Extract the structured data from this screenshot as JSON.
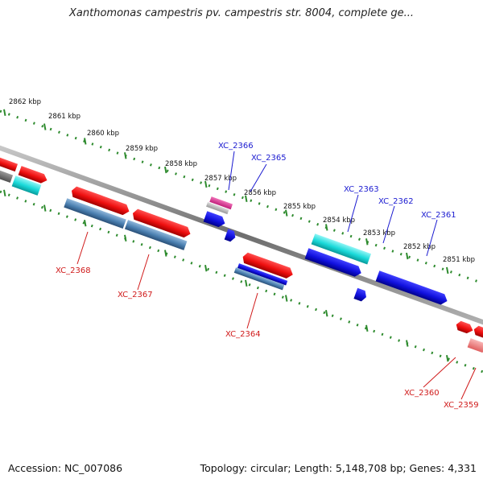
{
  "title": "Xanthomonas campestris pv. campestris str. 8004, complete ge...",
  "footer": {
    "accession": "Accession: NC_007086",
    "summary": "Topology: circular; Length: 5,148,708 bp; Genes: 4,331"
  },
  "scale_labels": [
    "2862 kbp",
    "2861 kbp",
    "2860 kbp",
    "2859 kbp",
    "2858 kbp",
    "2857 kbp",
    "2856 kbp",
    "2855 kbp",
    "2854 kbp",
    "2853 kbp",
    "2852 kbp",
    "2851 kbp"
  ],
  "gene_labels": {
    "forward": [
      "XC_2366",
      "XC_2365",
      "XC_2363",
      "XC_2362",
      "XC_2361"
    ],
    "reverse": [
      "XC_2368",
      "XC_2367",
      "XC_2364",
      "XC_2360",
      "XC_2359"
    ]
  },
  "colors": {
    "forward_label": "#1a1ad0",
    "reverse_label": "#d01a1a",
    "backbone": "#8a8a8a",
    "tick": "#2e8b2e",
    "forward_gene": "#1010dd",
    "reverse_gene": "#ee1111",
    "cyan_gene": "#19d9d9",
    "steel_gene": "#4a7fb0",
    "pink_gene": "#e0409a"
  }
}
